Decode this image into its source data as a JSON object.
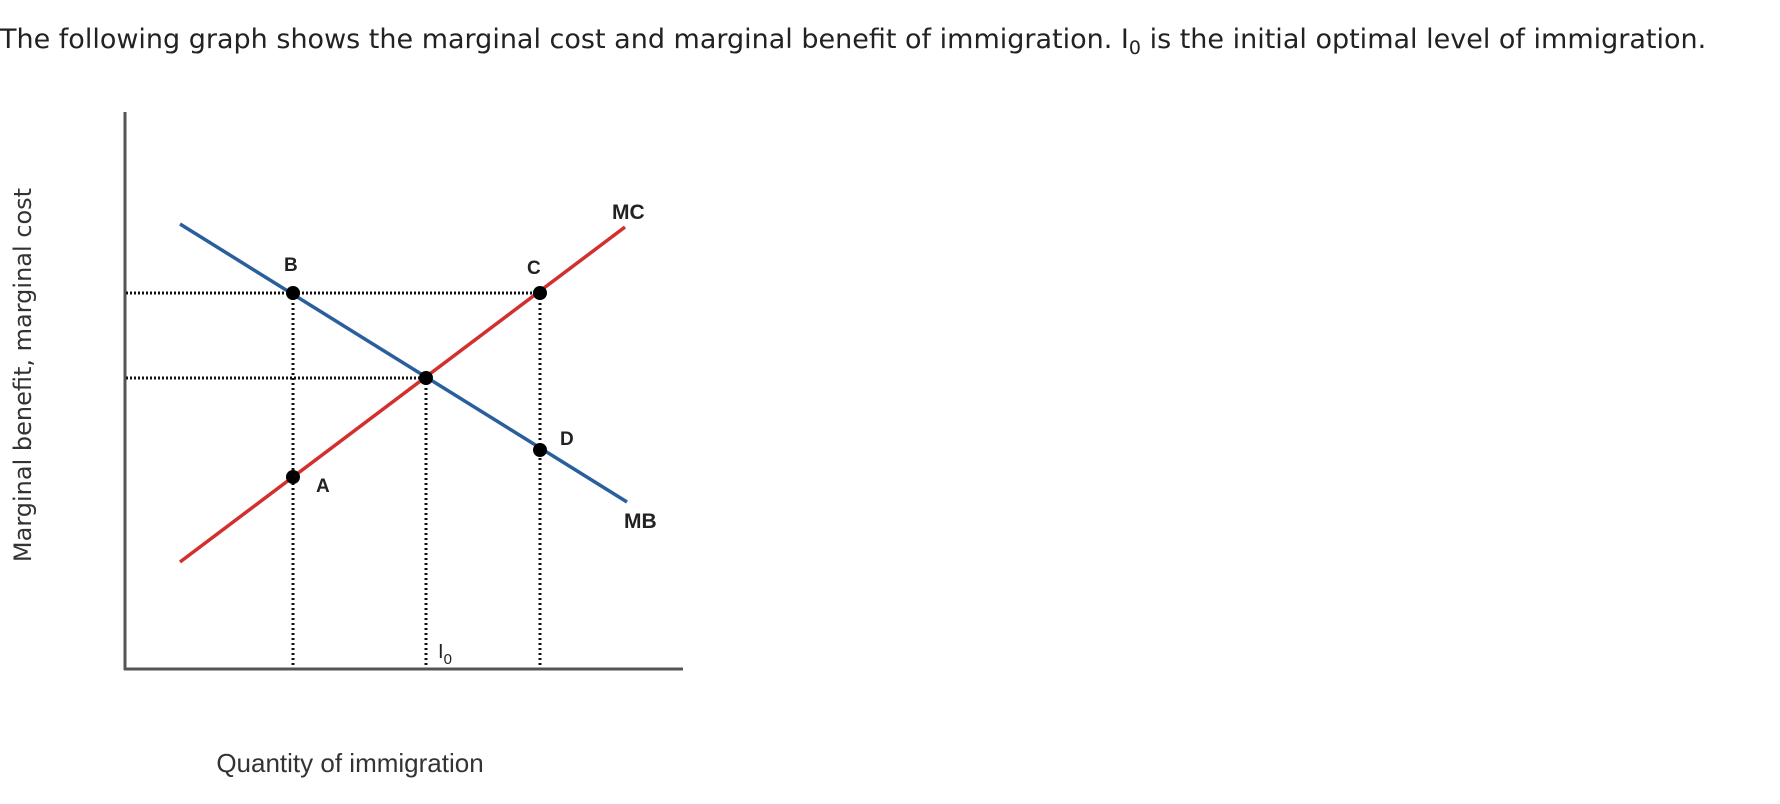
{
  "question": {
    "text_before": "The following graph shows the marginal cost and marginal benefit of immigration. I",
    "subscript": "0",
    "text_after": " is the initial optimal level of immigration."
  },
  "chart_data": {
    "type": "line",
    "xlabel": "Quantity of immigration",
    "ylabel": "Marginal benefit, marginal cost",
    "x_tick_labels": [
      {
        "main": "I",
        "sub": "0"
      }
    ],
    "series": [
      {
        "name": "MC",
        "color": "#d32f2f"
      },
      {
        "name": "MB",
        "color": "#2a5f9e"
      }
    ],
    "points": [
      {
        "label": "A"
      },
      {
        "label": "B"
      },
      {
        "label": "C"
      },
      {
        "label": "D"
      }
    ],
    "axis_color": "#555555",
    "guide_color": "#111111"
  }
}
